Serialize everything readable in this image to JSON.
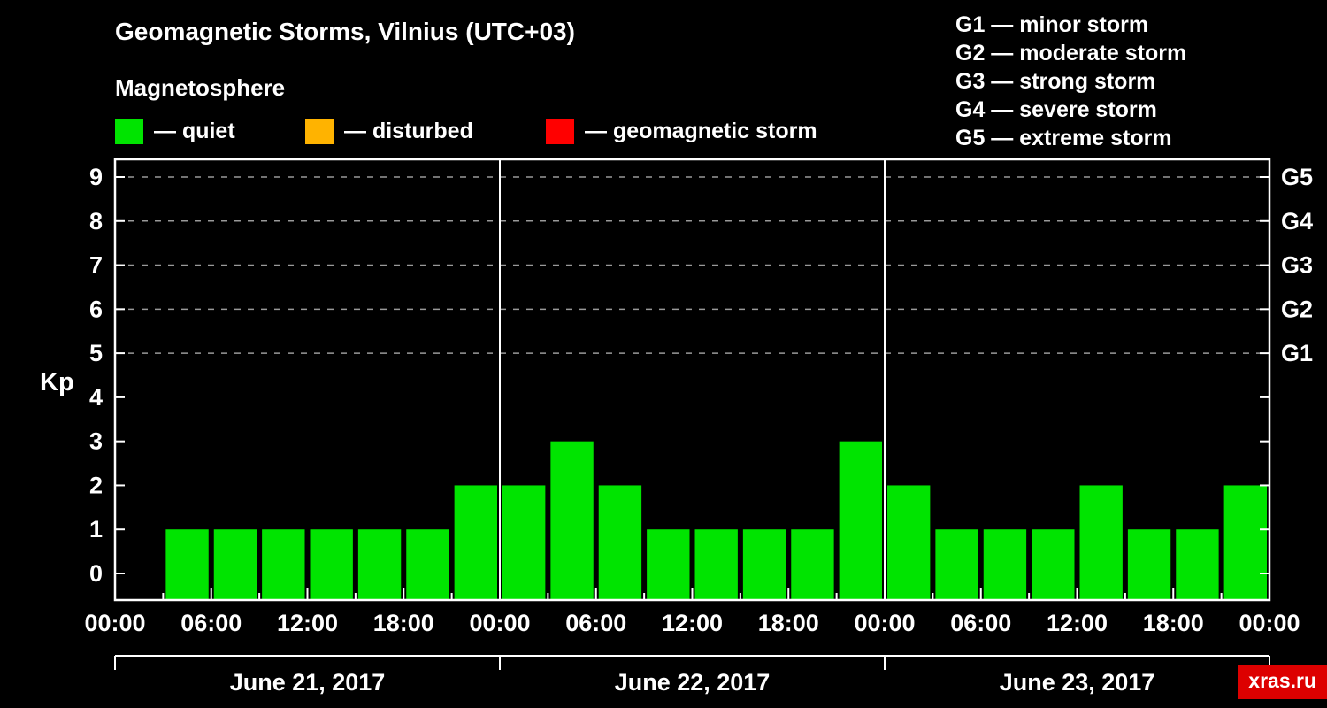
{
  "title": "Geomagnetic Storms, Vilnius (UTC+03)",
  "subtitle": "Magnetosphere",
  "legend": {
    "items": [
      {
        "label": "— quiet",
        "color": "#00e400"
      },
      {
        "label": "— disturbed",
        "color": "#ffb300"
      },
      {
        "label": "— geomagnetic storm",
        "color": "#ff0000"
      }
    ]
  },
  "storm_legend": [
    "G1 — minor storm",
    "G2 — moderate storm",
    "G3 — strong storm",
    "G4 — severe storm",
    "G5 — extreme storm"
  ],
  "watermark": "xras.ru",
  "chart_data": {
    "type": "bar",
    "title": "Geomagnetic Storms, Vilnius (UTC+03)",
    "subtitle": "Magnetosphere",
    "ylabel": "Kp",
    "ylim": [
      0,
      9.6
    ],
    "yticks": [
      0,
      1,
      2,
      3,
      4,
      5,
      6,
      7,
      8,
      9
    ],
    "right_axis_labels": [
      {
        "level": 5,
        "label": "G1"
      },
      {
        "level": 6,
        "label": "G2"
      },
      {
        "level": 7,
        "label": "G3"
      },
      {
        "level": 8,
        "label": "G4"
      },
      {
        "level": 9,
        "label": "G5"
      }
    ],
    "gridline_levels": [
      5,
      6,
      7,
      8,
      9
    ],
    "interval_hours": 3,
    "time_labels": [
      "00:00",
      "06:00",
      "12:00",
      "18:00"
    ],
    "closing_time_label": "00:00",
    "days": [
      {
        "date": "June 21, 2017",
        "values": [
          null,
          1,
          1,
          1,
          1,
          1,
          1,
          2
        ]
      },
      {
        "date": "June 22, 2017",
        "values": [
          2,
          3,
          2,
          1,
          1,
          1,
          1,
          3
        ]
      },
      {
        "date": "June 23, 2017",
        "values": [
          2,
          1,
          1,
          1,
          2,
          1,
          1,
          2
        ]
      }
    ],
    "bar_color": "#00e400",
    "grid_color": "#999999",
    "axis_color": "#ffffff",
    "grid_on": true,
    "legend_position": "top"
  }
}
